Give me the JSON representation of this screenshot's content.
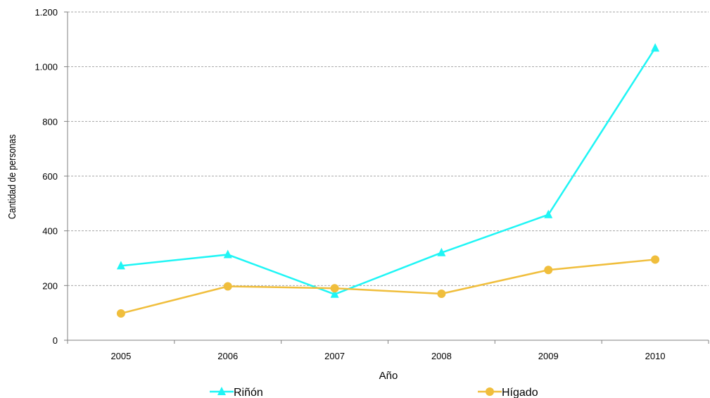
{
  "chart_data": {
    "type": "line",
    "categories": [
      "2005",
      "2006",
      "2007",
      "2008",
      "2009",
      "2010"
    ],
    "series": [
      {
        "name": "Riñón",
        "values": [
          272,
          313,
          168,
          320,
          459,
          1068
        ],
        "color": "#1ff5f5",
        "marker": "triangle"
      },
      {
        "name": "Hígado",
        "values": [
          98,
          197,
          190,
          170,
          257,
          295
        ],
        "color": "#f0be3c",
        "marker": "circle"
      }
    ],
    "title": "",
    "xlabel": "Año",
    "ylabel": "Cantidad de personas",
    "ylim": [
      0,
      1200
    ],
    "yticks": [
      0,
      200,
      400,
      600,
      800,
      1000,
      1200
    ],
    "ytick_labels": [
      "0",
      "200",
      "400",
      "600",
      "800",
      "1.000",
      "1.200"
    ],
    "grid": "horizontal dashed",
    "legend_position": "bottom"
  }
}
